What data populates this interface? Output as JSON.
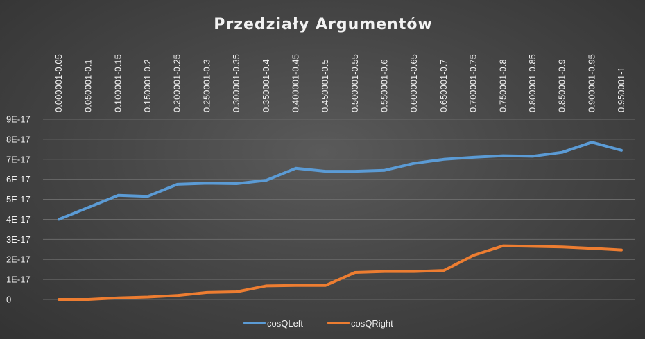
{
  "chart_data": {
    "type": "line",
    "title": "Przedziały Argumentów",
    "categories": [
      "0.000001-0.05",
      "0.050001-0.1",
      "0.100001-0.15",
      "0.150001-0.2",
      "0.200001-0.25",
      "0.250001-0.3",
      "0.300001-0.35",
      "0.350001-0.4",
      "0.400001-0.45",
      "0.450001-0.5",
      "0.500001-0.55",
      "0.550001-0.6",
      "0.600001-0.65",
      "0.650001-0.7",
      "0.700001-0.75",
      "0.750001-0.8",
      "0.800001-0.85",
      "0.850001-0.9",
      "0.900001-0.95",
      "0.950001-1"
    ],
    "y_ticks": [
      "0",
      "1E-17",
      "2E-17",
      "3E-17",
      "4E-17",
      "5E-17",
      "6E-17",
      "7E-17",
      "8E-17",
      "9E-17"
    ],
    "ylim": [
      0,
      9
    ],
    "y_unit_multiplier": "1E-17",
    "grid": true,
    "legend_position": "bottom",
    "series": [
      {
        "name": "cosQLeft",
        "color": "#5b9bd5",
        "values": [
          4.0,
          4.6,
          5.2,
          5.15,
          5.75,
          5.8,
          5.78,
          5.95,
          6.55,
          6.4,
          6.4,
          6.45,
          6.8,
          7.0,
          7.1,
          7.18,
          7.15,
          7.35,
          7.85,
          7.45
        ]
      },
      {
        "name": "cosQRight",
        "color": "#ed7d31",
        "values": [
          0.0,
          0.0,
          0.08,
          0.12,
          0.2,
          0.35,
          0.38,
          0.68,
          0.7,
          0.7,
          1.35,
          1.4,
          1.4,
          1.45,
          2.2,
          2.68,
          2.65,
          2.62,
          2.55,
          2.47
        ]
      }
    ]
  }
}
